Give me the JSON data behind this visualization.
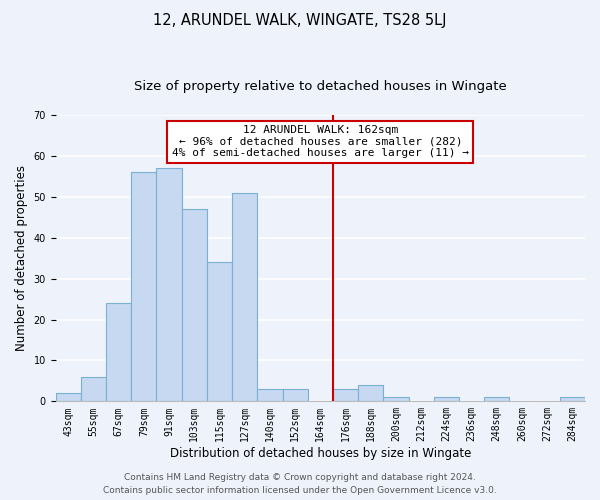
{
  "title": "12, ARUNDEL WALK, WINGATE, TS28 5LJ",
  "subtitle": "Size of property relative to detached houses in Wingate",
  "xlabel": "Distribution of detached houses by size in Wingate",
  "ylabel": "Number of detached properties",
  "bin_labels": [
    "43sqm",
    "55sqm",
    "67sqm",
    "79sqm",
    "91sqm",
    "103sqm",
    "115sqm",
    "127sqm",
    "140sqm",
    "152sqm",
    "164sqm",
    "176sqm",
    "188sqm",
    "200sqm",
    "212sqm",
    "224sqm",
    "236sqm",
    "248sqm",
    "260sqm",
    "272sqm",
    "284sqm"
  ],
  "bar_heights": [
    2,
    6,
    24,
    56,
    57,
    47,
    34,
    51,
    3,
    3,
    0,
    3,
    4,
    1,
    0,
    1,
    0,
    1,
    0,
    0,
    1
  ],
  "bar_color": "#c6d9f0",
  "bar_edge_color": "#7ab0d4",
  "bar_edge_width": 0.8,
  "vline_color": "#cc0000",
  "vline_pos": 10.5,
  "annotation_line1": "12 ARUNDEL WALK: 162sqm",
  "annotation_line2": "← 96% of detached houses are smaller (282)",
  "annotation_line3": "4% of semi-detached houses are larger (11) →",
  "annotation_box_color": "#ffffff",
  "annotation_box_edge_color": "#cc0000",
  "ylim": [
    0,
    70
  ],
  "yticks": [
    0,
    10,
    20,
    30,
    40,
    50,
    60,
    70
  ],
  "footer_line1": "Contains HM Land Registry data © Crown copyright and database right 2024.",
  "footer_line2": "Contains public sector information licensed under the Open Government Licence v3.0.",
  "background_color": "#eef3fb",
  "plot_background_color": "#eef3fb",
  "grid_color": "#ffffff",
  "title_fontsize": 10.5,
  "subtitle_fontsize": 9.5,
  "axis_label_fontsize": 8.5,
  "tick_fontsize": 7,
  "annotation_fontsize": 8,
  "footer_fontsize": 6.5
}
